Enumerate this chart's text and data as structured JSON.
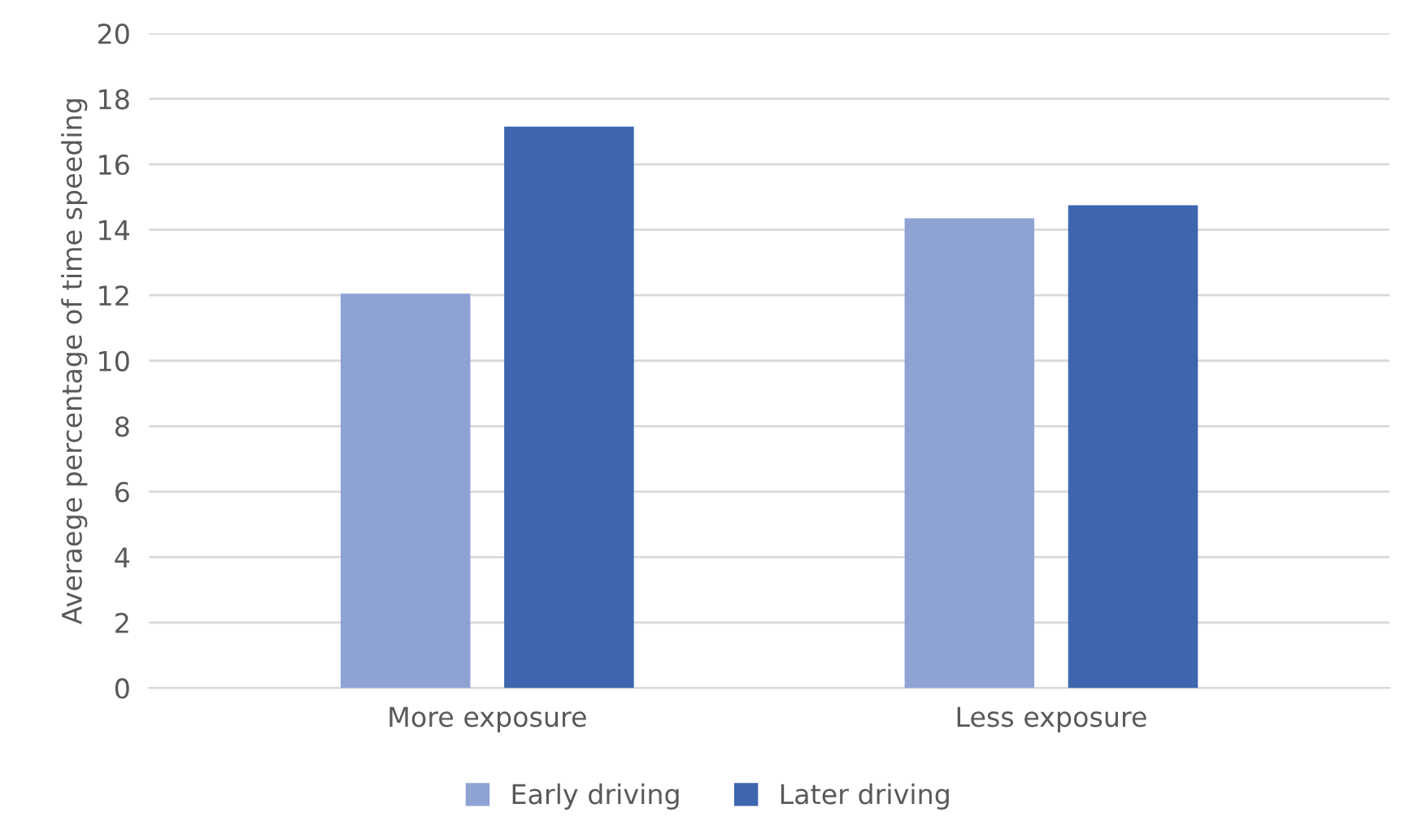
{
  "chart_data": {
    "type": "bar",
    "ylabel": "Averaege percentage of time speeding",
    "categories": [
      "More exposure",
      "Less exposure"
    ],
    "series": [
      {
        "name": "Early driving",
        "color": "#8fa2d4",
        "values": [
          12.05,
          14.35
        ]
      },
      {
        "name": "Later driving",
        "color": "#3d66ae",
        "values": [
          17.15,
          14.75
        ]
      }
    ],
    "ylim": [
      0,
      20
    ],
    "yticks": [
      0,
      2,
      4,
      6,
      8,
      10,
      12,
      14,
      16,
      18,
      20
    ],
    "grid": "y",
    "legend": "bottom"
  }
}
